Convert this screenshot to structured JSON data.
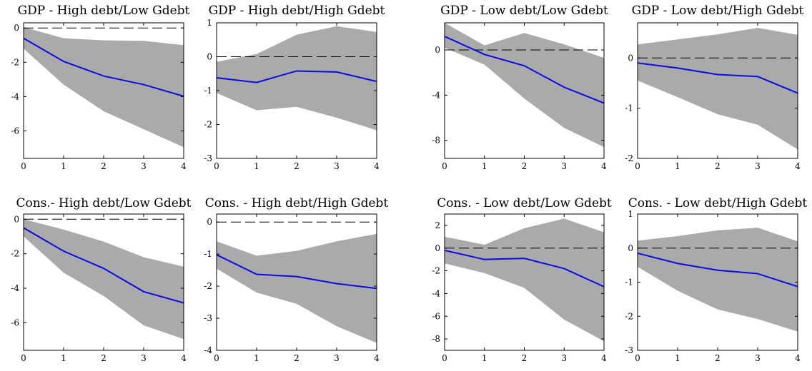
{
  "chart_data": [
    {
      "type": "line",
      "title": "GDP - High debt/Low Gdebt",
      "x": [
        0,
        1,
        2,
        3,
        4
      ],
      "xticks": [
        0,
        1,
        2,
        3,
        4
      ],
      "yticks": [
        0,
        -2,
        -4,
        -6
      ],
      "ylim": [
        -7.6,
        0.3
      ],
      "series": [
        {
          "role": "point-estimate",
          "values": [
            -0.6,
            -1.95,
            -2.8,
            -3.3,
            -3.98
          ]
        },
        {
          "role": "band-upper",
          "values": [
            0.05,
            -0.6,
            -0.72,
            -0.75,
            -1.0
          ]
        },
        {
          "role": "band-lower",
          "values": [
            -1.2,
            -3.3,
            -4.85,
            -5.9,
            -6.95
          ]
        }
      ],
      "zero_line": true,
      "colors": {
        "line": "#0a0ae6",
        "band": "#aaaaaa"
      }
    },
    {
      "type": "line",
      "title": "GDP - High debt/High Gdebt",
      "x": [
        0,
        1,
        2,
        3,
        4
      ],
      "xticks": [
        0,
        1,
        2,
        3,
        4
      ],
      "yticks": [
        1,
        0,
        -1,
        -2,
        -3
      ],
      "ylim": [
        -3,
        1
      ],
      "series": [
        {
          "role": "point-estimate",
          "values": [
            -0.62,
            -0.76,
            -0.42,
            -0.45,
            -0.73
          ]
        },
        {
          "role": "band-upper",
          "values": [
            -0.15,
            0.08,
            0.65,
            0.9,
            0.73
          ]
        },
        {
          "role": "band-lower",
          "values": [
            -1.07,
            -1.58,
            -1.48,
            -1.8,
            -2.17
          ]
        }
      ],
      "zero_line": true,
      "colors": {
        "line": "#0a0ae6",
        "band": "#aaaaaa"
      }
    },
    {
      "type": "line",
      "title": "GDP - Low debt/Low Gdebt",
      "x": [
        0,
        1,
        2,
        3,
        4
      ],
      "xticks": [
        0,
        1,
        2,
        3,
        4
      ],
      "yticks": [
        0,
        -4,
        -8
      ],
      "ylim": [
        -9.6,
        2.4
      ],
      "series": [
        {
          "role": "point-estimate",
          "values": [
            1.2,
            -0.4,
            -1.4,
            -3.3,
            -4.7
          ]
        },
        {
          "role": "band-upper",
          "values": [
            2.4,
            0.4,
            1.5,
            0.5,
            -0.7
          ]
        },
        {
          "role": "band-lower",
          "values": [
            0.2,
            -1.3,
            -4.3,
            -6.9,
            -8.6
          ]
        }
      ],
      "zero_line": true,
      "colors": {
        "line": "#0a0ae6",
        "band": "#aaaaaa"
      }
    },
    {
      "type": "line",
      "title": "GDP - Low debt/High Gdebt",
      "x": [
        0,
        1,
        2,
        3,
        4
      ],
      "xticks": [
        0,
        1,
        2,
        3,
        4
      ],
      "yticks": [
        0,
        -1,
        -2
      ],
      "ylim": [
        -2,
        0.7
      ],
      "series": [
        {
          "role": "point-estimate",
          "values": [
            -0.1,
            -0.2,
            -0.33,
            -0.37,
            -0.7
          ]
        },
        {
          "role": "band-upper",
          "values": [
            0.27,
            0.37,
            0.47,
            0.6,
            0.46
          ]
        },
        {
          "role": "band-lower",
          "values": [
            -0.45,
            -0.78,
            -1.12,
            -1.33,
            -1.82
          ]
        }
      ],
      "zero_line": true,
      "colors": {
        "line": "#0a0ae6",
        "band": "#aaaaaa"
      }
    },
    {
      "type": "line",
      "title": "Cons.- High debt/Low Gdebt",
      "x": [
        0,
        1,
        2,
        3,
        4
      ],
      "xticks": [
        0,
        1,
        2,
        3,
        4
      ],
      "yticks": [
        0,
        -2,
        -4,
        -6
      ],
      "ylim": [
        -7.6,
        0.3
      ],
      "series": [
        {
          "role": "point-estimate",
          "values": [
            -0.5,
            -1.85,
            -2.85,
            -4.2,
            -4.85
          ]
        },
        {
          "role": "band-upper",
          "values": [
            0.0,
            -0.6,
            -1.3,
            -2.2,
            -2.75
          ]
        },
        {
          "role": "band-lower",
          "values": [
            -1.0,
            -3.1,
            -4.45,
            -6.15,
            -6.95
          ]
        }
      ],
      "zero_line": true,
      "colors": {
        "line": "#0a0ae6",
        "band": "#aaaaaa"
      }
    },
    {
      "type": "line",
      "title": "Cons. - High debt/High Gdebt",
      "x": [
        0,
        1,
        2,
        3,
        4
      ],
      "xticks": [
        0,
        1,
        2,
        3,
        4
      ],
      "yticks": [
        0,
        -1,
        -2,
        -3,
        -4
      ],
      "ylim": [
        -4,
        0.25
      ],
      "series": [
        {
          "role": "point-estimate",
          "values": [
            -1.02,
            -1.63,
            -1.7,
            -1.92,
            -2.07
          ]
        },
        {
          "role": "band-upper",
          "values": [
            -0.6,
            -1.05,
            -0.9,
            -0.6,
            -0.37
          ]
        },
        {
          "role": "band-lower",
          "values": [
            -1.45,
            -2.2,
            -2.55,
            -3.25,
            -3.77
          ]
        }
      ],
      "zero_line": true,
      "colors": {
        "line": "#0a0ae6",
        "band": "#aaaaaa"
      }
    },
    {
      "type": "line",
      "title": "Cons. - Low debt/Low Gdebt",
      "x": [
        0,
        1,
        2,
        3,
        4
      ],
      "xticks": [
        0,
        1,
        2,
        3,
        4
      ],
      "yticks": [
        2,
        0,
        -2,
        -4,
        -6,
        -8
      ],
      "ylim": [
        -9,
        3
      ],
      "series": [
        {
          "role": "point-estimate",
          "values": [
            -0.2,
            -1.0,
            -0.9,
            -1.8,
            -3.4
          ]
        },
        {
          "role": "band-upper",
          "values": [
            1.0,
            0.3,
            1.75,
            2.6,
            1.4
          ]
        },
        {
          "role": "band-lower",
          "values": [
            -1.35,
            -2.2,
            -3.5,
            -6.3,
            -8.2
          ]
        }
      ],
      "zero_line": true,
      "colors": {
        "line": "#0a0ae6",
        "band": "#aaaaaa"
      }
    },
    {
      "type": "line",
      "title": "Cons. - Low debt/High Gdebt",
      "x": [
        0,
        1,
        2,
        3,
        4
      ],
      "xticks": [
        0,
        1,
        2,
        3,
        4
      ],
      "yticks": [
        1,
        0,
        -1,
        -2,
        -3
      ],
      "ylim": [
        -3,
        1
      ],
      "series": [
        {
          "role": "point-estimate",
          "values": [
            -0.15,
            -0.45,
            -0.65,
            -0.75,
            -1.13
          ]
        },
        {
          "role": "band-upper",
          "values": [
            0.22,
            0.35,
            0.52,
            0.6,
            0.2
          ]
        },
        {
          "role": "band-lower",
          "values": [
            -0.55,
            -1.25,
            -1.8,
            -2.08,
            -2.45
          ]
        }
      ],
      "zero_line": true,
      "colors": {
        "line": "#0a0ae6",
        "band": "#aaaaaa"
      }
    }
  ]
}
